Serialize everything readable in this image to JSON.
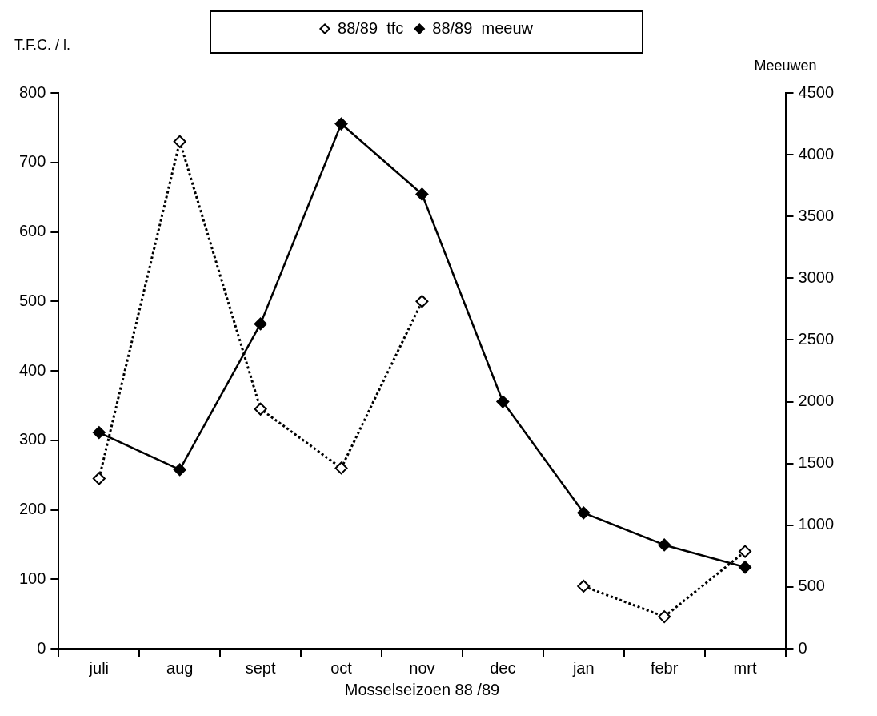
{
  "chart_data": {
    "type": "line",
    "ylabel": "T.F.C. / l.",
    "y2label": "Meeuwen",
    "xlabel": "Mosselseizoen 88 /89",
    "categories": [
      "juli",
      "aug",
      "sept",
      "oct",
      "nov",
      "dec",
      "jan",
      "febr",
      "mrt"
    ],
    "series": [
      {
        "name": "88/89  tfc",
        "color": "#000000",
        "values": [
          245,
          730,
          345,
          260,
          500,
          null,
          90,
          46,
          140
        ],
        "marker": "diamond",
        "line_style": "dotted"
      },
      {
        "name": "88/89  meeuw",
        "color": "#000000",
        "values": [
          1750,
          1450,
          2630,
          4250,
          3680,
          2000,
          1100,
          840,
          660
        ],
        "axis": "y2",
        "marker": "diamond",
        "line_style": "solid"
      }
    ],
    "ylim": [
      0,
      800
    ],
    "yticks": [
      0,
      100,
      200,
      300,
      400,
      500,
      600,
      700,
      800
    ],
    "y2lim": [
      0,
      4500
    ],
    "y2ticks": [
      0,
      500,
      1000,
      1500,
      2000,
      2500,
      3000,
      3500,
      4000,
      4500
    ],
    "grid": false,
    "legend": "top"
  }
}
